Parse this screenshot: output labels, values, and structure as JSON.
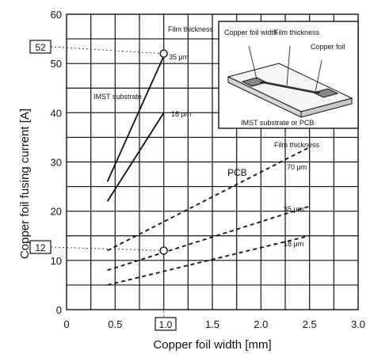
{
  "chart_data": {
    "type": "line",
    "xlabel": "Copper foil width [mm]",
    "ylabel": "Copper foil fusing current [A]",
    "xlim": [
      0,
      3.0
    ],
    "ylim": [
      0,
      60
    ],
    "x_ticks": [
      "0",
      "0.5",
      "1.0",
      "1.5",
      "2.0",
      "2.5",
      "3.0"
    ],
    "y_ticks": [
      "0",
      "10",
      "20",
      "30",
      "40",
      "50",
      "60"
    ],
    "grid": true,
    "series": [
      {
        "name": "35 μm",
        "group": "IMST substrate",
        "style": "solid",
        "x": [
          0.42,
          1.0
        ],
        "y": [
          26,
          51.5
        ]
      },
      {
        "name": "18 μm",
        "group": "IMST substrate",
        "style": "solid",
        "x": [
          0.42,
          1.0
        ],
        "y": [
          22,
          40
        ]
      },
      {
        "name": "70 μm",
        "group": "PCB",
        "style": "dashed",
        "x": [
          0.42,
          2.5
        ],
        "y": [
          12,
          33
        ]
      },
      {
        "name": "35 μm",
        "group": "PCB",
        "style": "dashed",
        "x": [
          0.42,
          2.5
        ],
        "y": [
          8,
          21
        ]
      },
      {
        "name": "18 μm",
        "group": "PCB",
        "style": "dashed",
        "x": [
          0.42,
          2.5
        ],
        "y": [
          5,
          15
        ]
      }
    ],
    "markers": [
      {
        "x": 1.0,
        "y": 52,
        "shape": "circle"
      },
      {
        "x": 1.0,
        "y": 12,
        "shape": "circle"
      }
    ],
    "annotations": {
      "film_thickness_top": "Film thickness",
      "film_thickness_mid": "Film thickness",
      "imst_label": "IMST substrate",
      "pcb_label": "PCB",
      "s35_label": "35 μm",
      "s18_label": "18 μm",
      "p70_label": "70 μm",
      "p35_label": "35 μm",
      "p18_label": "18 μm",
      "callout_y_high": "52",
      "callout_y_low": "12",
      "callout_x": "1.0",
      "callout_y_high_value": 52,
      "callout_y_low_value": 12,
      "callout_x_value": 1.0
    },
    "inset": {
      "copper_foil_width": "Copper foil width",
      "film_thickness": "Film thickness",
      "copper_foil": "Copper foil",
      "substrate": "IMST substrate or PCB"
    }
  }
}
